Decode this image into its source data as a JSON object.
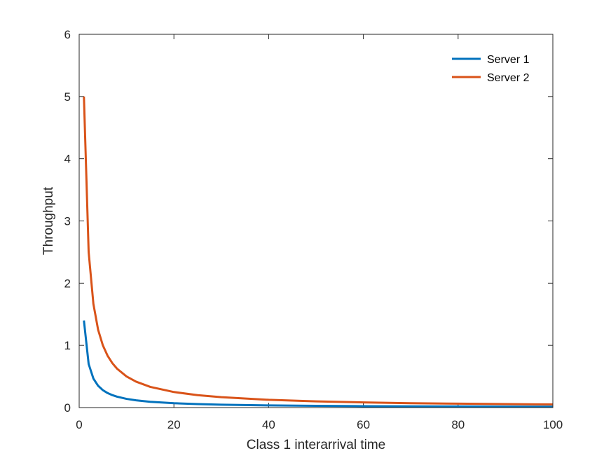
{
  "chart_data": {
    "type": "line",
    "xlabel": "Class 1 interarrival time",
    "ylabel": "Throughput",
    "xlim": [
      0,
      100
    ],
    "ylim": [
      0,
      6
    ],
    "xticks": [
      0,
      20,
      40,
      60,
      80,
      100
    ],
    "yticks": [
      0,
      1,
      2,
      3,
      4,
      5,
      6
    ],
    "grid": false,
    "legend_position": "top-right",
    "x": [
      1,
      2,
      3,
      4,
      5,
      6,
      7,
      8,
      10,
      12,
      15,
      20,
      25,
      30,
      40,
      50,
      60,
      70,
      80,
      90,
      100
    ],
    "series": [
      {
        "name": "Server 1",
        "color": "#0072BD",
        "values": [
          1.4,
          0.7,
          0.467,
          0.35,
          0.28,
          0.233,
          0.2,
          0.175,
          0.14,
          0.117,
          0.093,
          0.07,
          0.056,
          0.047,
          0.035,
          0.028,
          0.023,
          0.02,
          0.018,
          0.016,
          0.014
        ]
      },
      {
        "name": "Server 2",
        "color": "#D95319",
        "values": [
          5.0,
          2.5,
          1.667,
          1.25,
          1.0,
          0.833,
          0.714,
          0.625,
          0.5,
          0.417,
          0.333,
          0.25,
          0.2,
          0.167,
          0.125,
          0.1,
          0.083,
          0.071,
          0.063,
          0.056,
          0.05
        ]
      }
    ]
  }
}
